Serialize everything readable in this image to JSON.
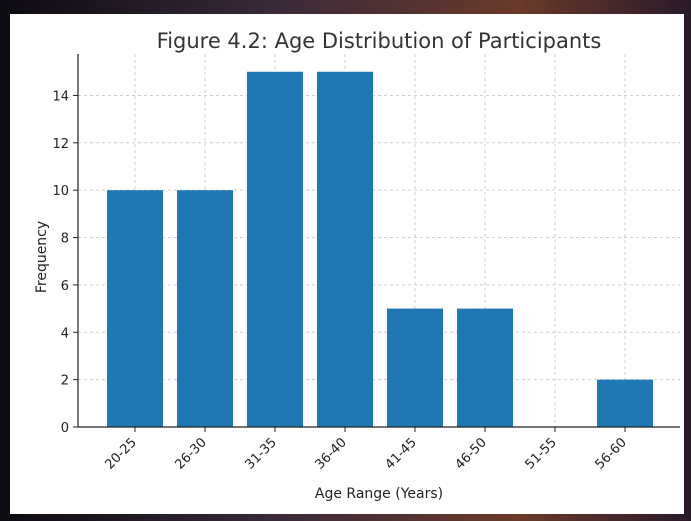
{
  "chart_data": {
    "type": "bar",
    "title": "Figure 4.2: Age Distribution of Participants",
    "xlabel": "Age Range (Years)",
    "ylabel": "Frequency",
    "categories": [
      "20-25",
      "26-30",
      "31-35",
      "36-40",
      "41-45",
      "46-50",
      "51-55",
      "56-60"
    ],
    "values": [
      10,
      10,
      15,
      15,
      5,
      5,
      0,
      2
    ],
    "ylim": [
      0,
      15.75
    ],
    "yticks": [
      "0",
      "2",
      "4",
      "6",
      "8",
      "10",
      "12",
      "14"
    ],
    "grid": true,
    "bar_color": "#1f77b4"
  }
}
